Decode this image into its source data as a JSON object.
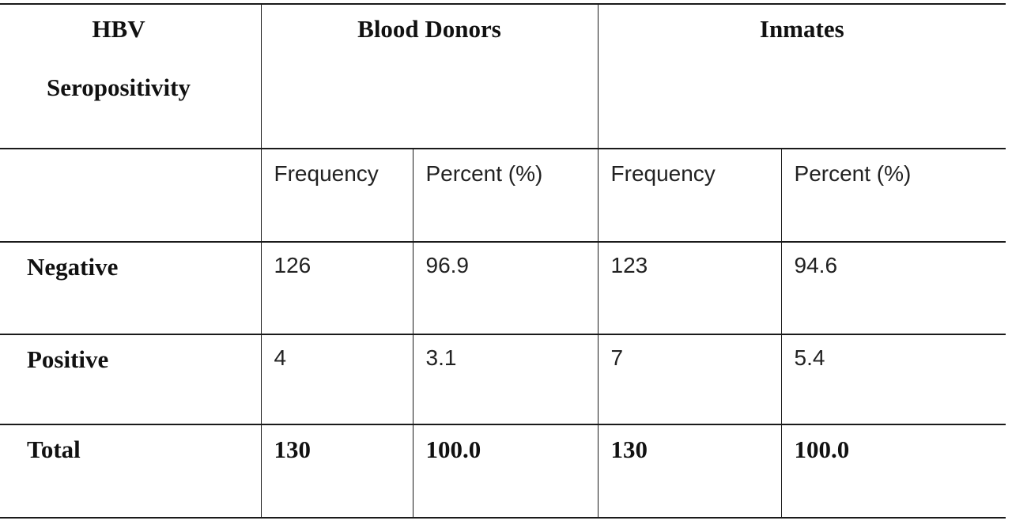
{
  "table": {
    "corner_header": {
      "line1": "HBV",
      "line2": "Seropositivity"
    },
    "group_headers": [
      "Blood Donors",
      "Inmates"
    ],
    "sub_headers": [
      "Frequency",
      "Percent (%)",
      "Frequency",
      "Percent (%)"
    ],
    "rows": [
      {
        "label": "Negative",
        "values": [
          "126",
          "96.9",
          "123",
          "94.6"
        ]
      },
      {
        "label": "Positive",
        "values": [
          "4",
          "3.1",
          "7",
          "5.4"
        ]
      },
      {
        "label": "Total",
        "values": [
          "130",
          "100.0",
          "130",
          "100.0"
        ]
      }
    ]
  }
}
